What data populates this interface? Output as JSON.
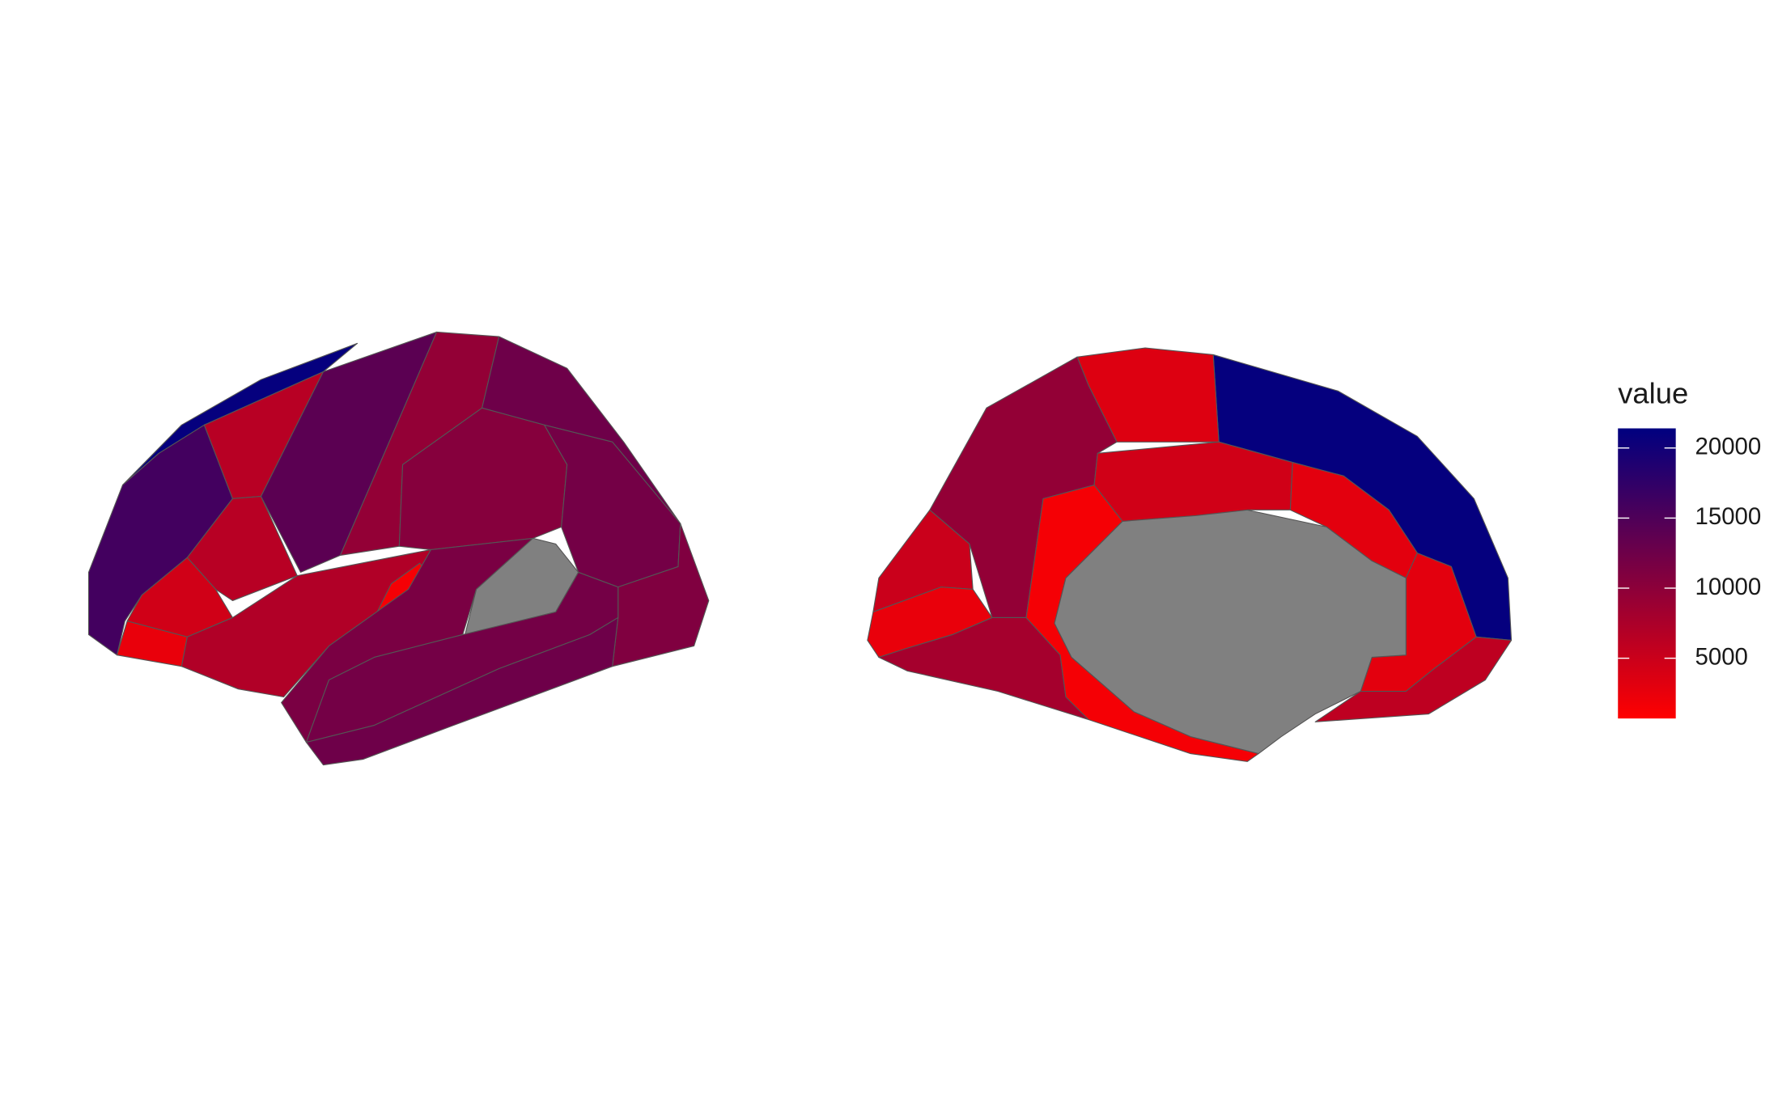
{
  "chart_data": {
    "type": "choropleth",
    "legend_title": "value",
    "colorbar": {
      "low_color": "#ff0000",
      "high_color": "#000080",
      "na_color": "#808080",
      "lim": [
        700,
        21400
      ],
      "ticks": [
        5000,
        10000,
        15000,
        20000
      ]
    },
    "values": [
      21000,
      16000,
      6500,
      14000,
      9500,
      12500,
      10500,
      12000,
      11000,
      6500,
      4500,
      2500,
      7000,
      1500,
      11500,
      null,
      12000,
      12500,
      21000,
      3500,
      9500,
      5000,
      2500,
      8000,
      4500,
      1500,
      3000,
      3000,
      6000,
      null
    ]
  }
}
